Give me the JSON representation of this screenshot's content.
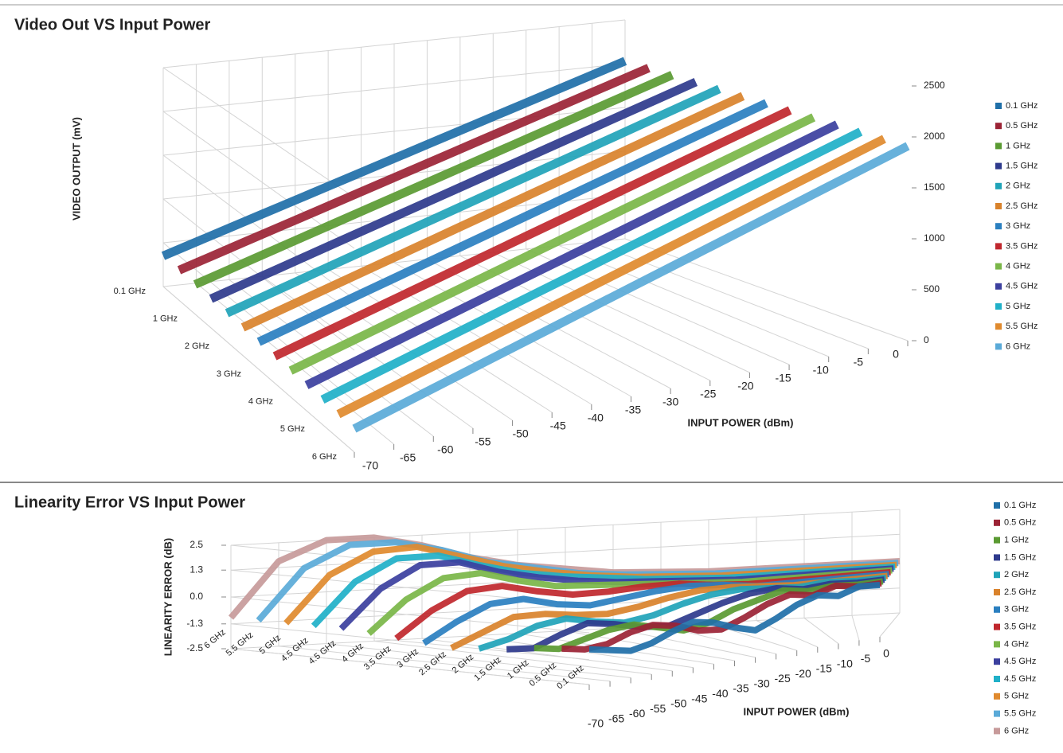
{
  "chart_data": [
    {
      "type": "ribbon",
      "title": "Video Out VS Input Power",
      "x_label": "INPUT POWER (dBm)",
      "y_label": "VIDEO OUTPUT (mV)",
      "x": [
        -70,
        -65,
        -60,
        -55,
        -50,
        -45,
        -40,
        -35,
        -30,
        -25,
        -20,
        -15,
        -10,
        -5,
        0
      ],
      "xlim": [
        -70,
        0
      ],
      "xticks": [
        -70,
        -65,
        -60,
        -55,
        -50,
        -45,
        -40,
        -35,
        -30,
        -25,
        -20,
        -15,
        -10,
        -5,
        0
      ],
      "ylim": [
        0,
        2500
      ],
      "yticks": [
        0,
        500,
        1000,
        1500,
        2000,
        2500
      ],
      "grid": true,
      "zcategories": [
        "0.1 GHz",
        null,
        "1 GHz",
        null,
        "2 GHz",
        null,
        "3 GHz",
        null,
        "4 GHz",
        null,
        "5 GHz",
        null,
        "6 GHz"
      ],
      "series": [
        {
          "name": "0.1 GHz",
          "color": "#1f6fa8",
          "values": [
            350,
            470,
            590,
            710,
            830,
            950,
            1070,
            1190,
            1310,
            1430,
            1550,
            1670,
            1790,
            1910,
            2030
          ]
        },
        {
          "name": "0.5 GHz",
          "color": "#9b2335",
          "values": [
            340,
            460,
            580,
            700,
            820,
            940,
            1060,
            1180,
            1300,
            1420,
            1540,
            1660,
            1780,
            1900,
            2020
          ]
        },
        {
          "name": "1 GHz",
          "color": "#5a9a32",
          "values": [
            330,
            450,
            570,
            690,
            810,
            930,
            1050,
            1170,
            1290,
            1410,
            1530,
            1650,
            1770,
            1890,
            2010
          ]
        },
        {
          "name": "1.5 GHz",
          "color": "#2e3a8c",
          "values": [
            320,
            440,
            560,
            680,
            800,
            920,
            1040,
            1160,
            1280,
            1400,
            1520,
            1640,
            1760,
            1880,
            2000
          ]
        },
        {
          "name": "2 GHz",
          "color": "#1fa3b8",
          "values": [
            310,
            430,
            550,
            670,
            790,
            910,
            1030,
            1150,
            1270,
            1390,
            1510,
            1630,
            1750,
            1870,
            1990
          ]
        },
        {
          "name": "2.5 GHz",
          "color": "#d9822b",
          "values": [
            300,
            420,
            540,
            660,
            780,
            900,
            1020,
            1140,
            1260,
            1380,
            1500,
            1620,
            1740,
            1860,
            1980
          ]
        },
        {
          "name": "3 GHz",
          "color": "#2a7fc0",
          "values": [
            290,
            410,
            530,
            650,
            770,
            890,
            1010,
            1130,
            1250,
            1370,
            1490,
            1610,
            1730,
            1850,
            1970
          ]
        },
        {
          "name": "3.5 GHz",
          "color": "#c0272d",
          "values": [
            280,
            400,
            520,
            640,
            760,
            880,
            1000,
            1120,
            1240,
            1360,
            1480,
            1600,
            1720,
            1840,
            1960
          ]
        },
        {
          "name": "4 GHz",
          "color": "#7ab648",
          "values": [
            270,
            390,
            510,
            630,
            750,
            870,
            990,
            1110,
            1230,
            1350,
            1470,
            1590,
            1710,
            1830,
            1950
          ]
        },
        {
          "name": "4.5 GHz",
          "color": "#3b3f9e",
          "values": [
            260,
            380,
            500,
            620,
            740,
            860,
            980,
            1100,
            1220,
            1340,
            1460,
            1580,
            1700,
            1820,
            1940
          ]
        },
        {
          "name": "5 GHz",
          "color": "#20b0c8",
          "values": [
            250,
            370,
            490,
            610,
            730,
            850,
            970,
            1090,
            1210,
            1330,
            1450,
            1570,
            1690,
            1810,
            1930
          ]
        },
        {
          "name": "5.5 GHz",
          "color": "#e08a2e",
          "values": [
            240,
            360,
            480,
            600,
            720,
            840,
            960,
            1080,
            1200,
            1320,
            1440,
            1560,
            1680,
            1800,
            1920
          ]
        },
        {
          "name": "6 GHz",
          "color": "#5aaad8",
          "values": [
            230,
            350,
            470,
            590,
            710,
            830,
            950,
            1070,
            1190,
            1310,
            1430,
            1550,
            1670,
            1790,
            1910
          ]
        }
      ]
    },
    {
      "type": "ribbon",
      "title": "Linearity Error VS Input Power",
      "x_label": "INPUT POWER (dBm)",
      "y_label": "LINEARITY ERROR (dB)",
      "x": [
        -70,
        -65,
        -60,
        -55,
        -50,
        -45,
        -40,
        -35,
        -30,
        -25,
        -20,
        -15,
        -10,
        -5,
        0
      ],
      "xlim": [
        -70,
        0
      ],
      "xticks": [
        -70,
        -65,
        -60,
        -55,
        -50,
        -45,
        -40,
        -35,
        -30,
        -25,
        -20,
        -15,
        -10,
        -5,
        0
      ],
      "ylim": [
        -2.5,
        2.5
      ],
      "yticks": [
        -2.5,
        -1.3,
        {
          "value": 0,
          "label": "0.0"
        },
        1.3,
        2.5
      ],
      "grid": true,
      "zcategories": [
        "6 GHz",
        "5.5 GHz",
        "5 GHz",
        "4.5 GHz",
        "4.5 GHz",
        "4 GHz",
        "3.5 GHz",
        "3 GHz",
        "2.5 GHz",
        "2 GHz",
        "1.5 GHz",
        "1 GHz",
        "0.5 GHz",
        "0.1 GHz"
      ],
      "series": [
        {
          "name": "0.1 GHz",
          "color": "#1f6fa8",
          "values": [
            -0.8,
            -1.0,
            -1.2,
            -1.0,
            -0.6,
            -0.3,
            -0.5,
            -0.9,
            -1.2,
            -0.8,
            -0.3,
            0.0,
            -0.2,
            0.1,
            0.0
          ]
        },
        {
          "name": "0.5 GHz",
          "color": "#9b2335",
          "values": [
            -0.9,
            -1.1,
            -1.0,
            -0.6,
            -0.4,
            -0.6,
            -1.0,
            -1.1,
            -0.7,
            -0.2,
            0.1,
            -0.1,
            0.2,
            0.0,
            0.0
          ]
        },
        {
          "name": "1 GHz",
          "color": "#5a9a32",
          "values": [
            -1.0,
            -1.2,
            -0.9,
            -0.6,
            -0.5,
            -0.8,
            -1.1,
            -0.9,
            -0.4,
            -0.1,
            0.2,
            0.0,
            0.1,
            0.0,
            0.0
          ]
        },
        {
          "name": "1.5 GHz",
          "color": "#2e3a8c",
          "values": [
            -1.2,
            -1.3,
            -0.8,
            -0.4,
            -0.6,
            -0.9,
            -1.0,
            -0.6,
            -0.2,
            0.1,
            0.2,
            0.0,
            0.1,
            0.0,
            0.0
          ]
        },
        {
          "name": "2 GHz",
          "color": "#1fa3b8",
          "values": [
            -1.3,
            -1.0,
            -0.5,
            -0.3,
            -0.6,
            -0.8,
            -0.6,
            -0.2,
            0.1,
            0.2,
            0.1,
            0.0,
            0.1,
            0.0,
            0.0
          ]
        },
        {
          "name": "2.5 GHz",
          "color": "#d9822b",
          "values": [
            -1.4,
            -0.8,
            -0.2,
            -0.2,
            -0.4,
            -0.5,
            -0.3,
            0.0,
            0.2,
            0.2,
            0.1,
            0.0,
            0.0,
            0.0,
            0.0
          ]
        },
        {
          "name": "3 GHz",
          "color": "#2a7fc0",
          "values": [
            -1.3,
            -0.4,
            0.3,
            0.4,
            0.0,
            -0.2,
            0.0,
            0.2,
            0.3,
            0.2,
            0.0,
            0.0,
            0.0,
            0.0,
            0.0
          ]
        },
        {
          "name": "3.5 GHz",
          "color": "#c0272d",
          "values": [
            -1.2,
            0.0,
            0.8,
            0.9,
            0.5,
            0.2,
            0.2,
            0.3,
            0.3,
            0.1,
            0.0,
            0.0,
            0.0,
            0.0,
            0.0
          ]
        },
        {
          "name": "4 GHz",
          "color": "#7ab648",
          "values": [
            -1.1,
            0.4,
            1.3,
            1.4,
            0.9,
            0.5,
            0.4,
            0.3,
            0.2,
            0.1,
            0.0,
            0.0,
            0.0,
            0.0,
            0.0
          ]
        },
        {
          "name": "4.5 GHz",
          "color": "#3b3f9e",
          "values": [
            -1.0,
            0.8,
            1.8,
            1.8,
            1.2,
            0.8,
            0.5,
            0.3,
            0.2,
            0.1,
            0.0,
            0.0,
            0.0,
            0.0,
            0.0
          ]
        },
        {
          "name": "4.5 GHz",
          "color": "#20b0c8",
          "values": [
            -1.0,
            1.0,
            2.0,
            2.0,
            1.4,
            0.9,
            0.6,
            0.4,
            0.2,
            0.1,
            0.0,
            0.0,
            0.0,
            0.0,
            0.0
          ]
        },
        {
          "name": "5 GHz",
          "color": "#e08a2e",
          "values": [
            -1.0,
            1.2,
            2.2,
            2.3,
            1.7,
            1.1,
            0.7,
            0.4,
            0.2,
            0.1,
            0.0,
            0.0,
            0.0,
            0.0,
            0.0
          ]
        },
        {
          "name": "5.5 GHz",
          "color": "#5aaad8",
          "values": [
            -1.0,
            1.4,
            2.4,
            2.4,
            1.9,
            1.2,
            0.8,
            0.4,
            0.2,
            0.1,
            0.0,
            0.0,
            0.0,
            0.0,
            0.0
          ]
        },
        {
          "name": "6 GHz",
          "color": "#c79a9a",
          "values": [
            -1.0,
            1.6,
            2.5,
            2.5,
            2.0,
            1.3,
            0.8,
            0.5,
            0.2,
            0.1,
            0.0,
            0.0,
            0.0,
            0.0,
            0.0
          ]
        }
      ]
    }
  ]
}
